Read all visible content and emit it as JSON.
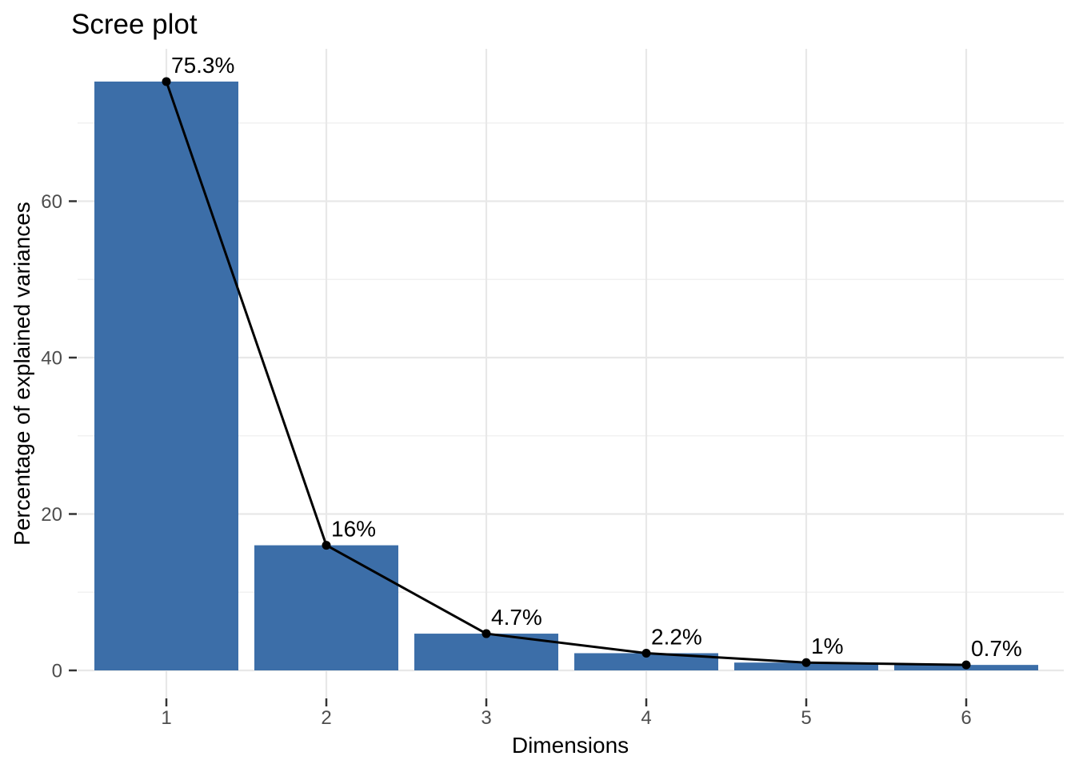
{
  "chart_data": {
    "type": "bar",
    "subtype": "scree-plot-with-line-overlay",
    "title": "Scree plot",
    "xlabel": "Dimensions",
    "ylabel": "Percentage of explained variances",
    "categories": [
      "1",
      "2",
      "3",
      "4",
      "5",
      "6"
    ],
    "values": [
      75.3,
      16,
      4.7,
      2.2,
      1,
      0.7
    ],
    "point_labels": [
      "75.3%",
      "16%",
      "4.7%",
      "2.2%",
      "1%",
      "0.7%"
    ],
    "y_axis": {
      "ticks": [
        0,
        20,
        40,
        60
      ],
      "minor_gridlines": [
        10,
        30,
        50,
        70
      ],
      "range": [
        -3.6,
        79.4
      ]
    },
    "x_axis": {
      "ticks": [
        "1",
        "2",
        "3",
        "4",
        "5",
        "6"
      ]
    },
    "legend": "none",
    "grid": "on",
    "colors": {
      "bar_fill": "#3C6EA8",
      "line": "#000000",
      "point": "#000000",
      "label_text": "#000000",
      "tick_text": "#4D4D4D",
      "tick_mark": "#333333",
      "grid_major": "#E8E8E8",
      "grid_minor": "#F1F1F1",
      "title_text": "#000000",
      "axis_title_text": "#000000",
      "background": "#FFFFFF"
    }
  }
}
